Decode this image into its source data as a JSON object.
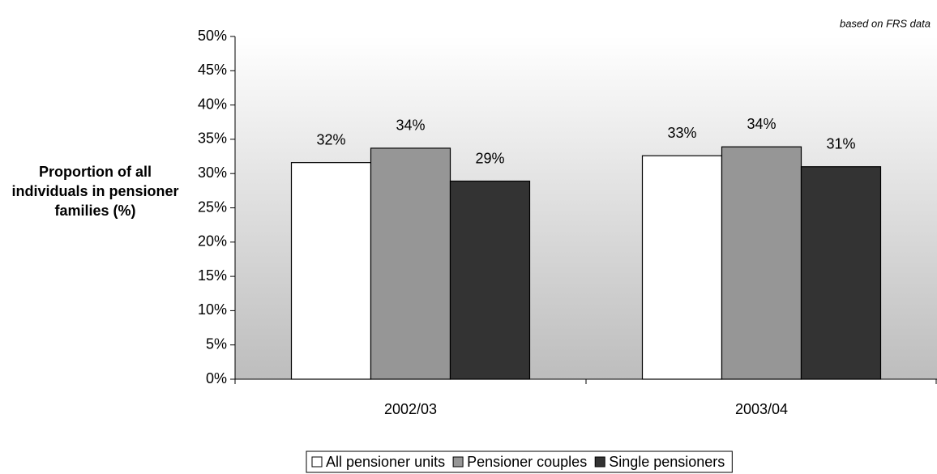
{
  "chart_data": {
    "type": "bar",
    "annotation": "based on FRS data",
    "y_label": "Proportion of all individuals in pensioner families (%)",
    "categories": [
      "2002/03",
      "2003/04"
    ],
    "series": [
      {
        "name": "All pensioner units",
        "color": "#ffffff",
        "values": [
          31.6,
          32.6
        ],
        "value_labels": [
          "32%",
          "33%"
        ]
      },
      {
        "name": "Pensioner couples",
        "color": "#969696",
        "values": [
          33.7,
          33.9
        ],
        "value_labels": [
          "34%",
          "34%"
        ]
      },
      {
        "name": "Single pensioners",
        "color": "#333333",
        "values": [
          28.9,
          31.0
        ],
        "value_labels": [
          "29%",
          "31%"
        ]
      }
    ],
    "ylim": [
      0,
      50
    ],
    "yticks": [
      {
        "value": 0,
        "label": "0%"
      },
      {
        "value": 5,
        "label": "5%"
      },
      {
        "value": 10,
        "label": "10%"
      },
      {
        "value": 15,
        "label": "15%"
      },
      {
        "value": 20,
        "label": "20%"
      },
      {
        "value": 25,
        "label": "25%"
      },
      {
        "value": 30,
        "label": "30%"
      },
      {
        "value": 35,
        "label": "35%"
      },
      {
        "value": 40,
        "label": "40%"
      },
      {
        "value": 45,
        "label": "45%"
      },
      {
        "value": 50,
        "label": "50%"
      }
    ],
    "legend": "bottom"
  }
}
